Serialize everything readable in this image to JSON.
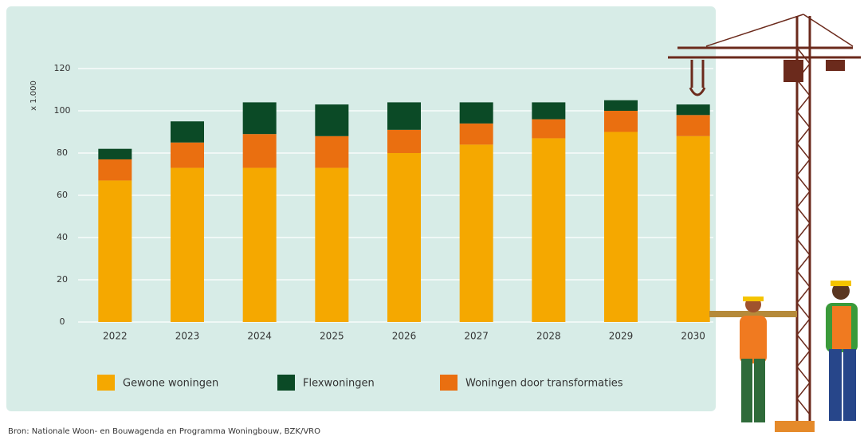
{
  "chart_data": {
    "type": "stacked_bar",
    "y_label": "x 1.000",
    "categories": [
      "2022",
      "2023",
      "2024",
      "2025",
      "2026",
      "2027",
      "2028",
      "2029",
      "2030"
    ],
    "series": [
      {
        "name": "Gewone woningen",
        "color": "#f5a800",
        "values": [
          67,
          73,
          73,
          73,
          80,
          84,
          87,
          90,
          88
        ]
      },
      {
        "name": "Flexwoningen",
        "color": "#0b4a26",
        "values": [
          5,
          10,
          15,
          15,
          13,
          10,
          8,
          5,
          5
        ]
      },
      {
        "name": "Woningen door transformaties",
        "color": "#ea6f10",
        "values": [
          10,
          12,
          16,
          15,
          11,
          10,
          9,
          10,
          10
        ]
      }
    ],
    "ylim": [
      0,
      120
    ],
    "yticks": [
      0,
      20,
      40,
      60,
      80,
      100,
      120
    ],
    "grid": true,
    "source": "Bron: Nationale Woon- en Bouwagenda en Programma Woningbouw, BZK/VRO"
  }
}
